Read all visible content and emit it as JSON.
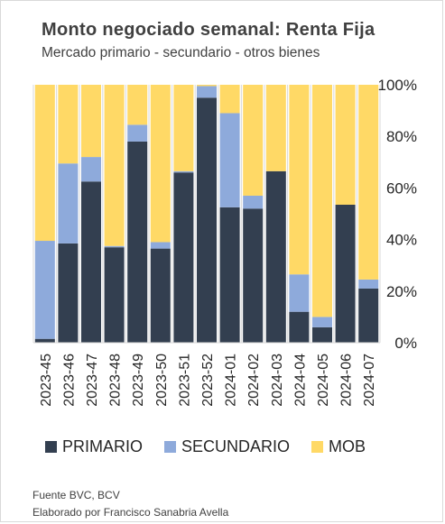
{
  "chart_data": {
    "type": "bar",
    "stacked": "percent",
    "title": "Monto negociado semanal: Renta Fija",
    "subtitle": "Mercado  primario  -  secundario  -  otros bienes",
    "categories": [
      "2023-45",
      "2023-46",
      "2023-47",
      "2023-48",
      "2023-49",
      "2023-50",
      "2023-51",
      "2023-52",
      "2024-01",
      "2024-02",
      "2024-03",
      "2024-04",
      "2024-05",
      "2024-06",
      "2024-07"
    ],
    "series": [
      {
        "name": "PRIMARIO",
        "color": "#333f50",
        "values": [
          1.5,
          38.5,
          62.5,
          37,
          78,
          36.5,
          66,
          95,
          52.5,
          52,
          66.5,
          12,
          6,
          53.5,
          21
        ]
      },
      {
        "name": "SECUNDARIO",
        "color": "#8eaadb",
        "values": [
          38,
          31,
          9.5,
          0.5,
          6.5,
          2.5,
          0.5,
          4.5,
          36.5,
          5,
          0,
          14.5,
          4,
          0,
          3.5
        ]
      },
      {
        "name": "MOB",
        "color": "#ffd966",
        "values": [
          60.5,
          30.5,
          28,
          62.5,
          15.5,
          61,
          33.5,
          0.5,
          11,
          43,
          33.5,
          73.5,
          90,
          46.5,
          75.5
        ]
      }
    ],
    "ylim": [
      0,
      100
    ],
    "yticks": [
      "0%",
      "20%",
      "40%",
      "60%",
      "80%",
      "100%"
    ],
    "grid": false,
    "legend_position": "bottom"
  },
  "footer": {
    "line1": "Fuente BVC, BCV",
    "line2": "Elaborado por Francisco Sanabria Avella"
  }
}
